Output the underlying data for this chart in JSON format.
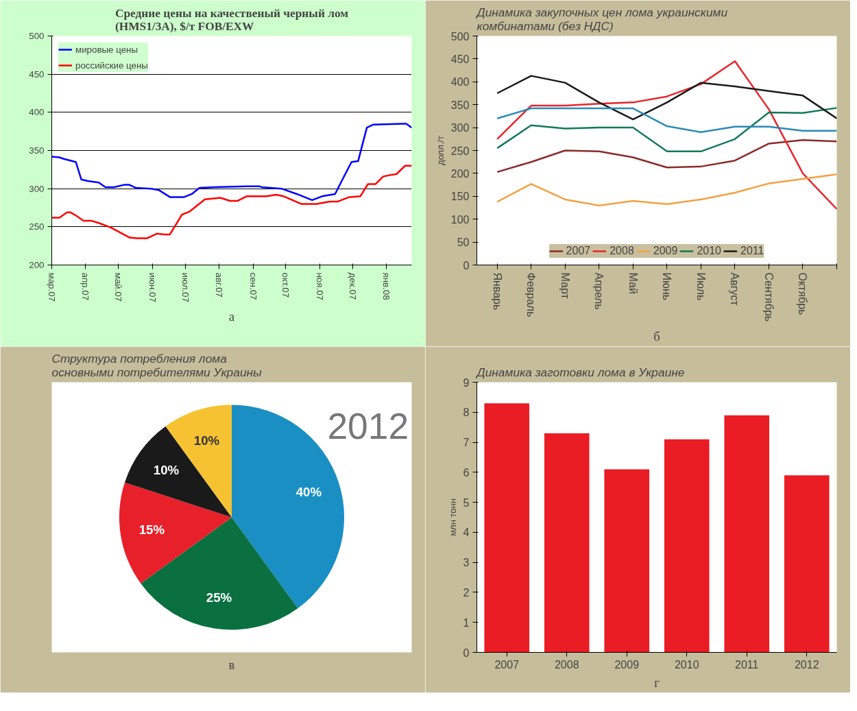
{
  "chart_data": [
    {
      "type": "line",
      "title": "Средние цены на качественый черный лом\n(HMS1/3A), $/т FOB/EXW",
      "xlim": [
        "2007-03-01",
        "2008-01-24"
      ],
      "ylim": [
        200,
        500
      ],
      "yticks": [
        200,
        250,
        300,
        350,
        400,
        450,
        500
      ],
      "xticks": [
        {
          "value": "2007-03-01",
          "label": "мар.07"
        },
        {
          "value": "2007-04-01",
          "label": "апр.07"
        },
        {
          "value": "2007-05-01",
          "label": "май.07"
        },
        {
          "value": "2007-06-01",
          "label": "июн.07"
        },
        {
          "value": "2007-07-01",
          "label": "июл.07"
        },
        {
          "value": "2007-08-01",
          "label": "авг.07"
        },
        {
          "value": "2007-09-01",
          "label": "сен.07"
        },
        {
          "value": "2007-10-01",
          "label": "окт.07"
        },
        {
          "value": "2007-11-01",
          "label": "ноя.07"
        },
        {
          "value": "2007-12-01",
          "label": "дек.07"
        },
        {
          "value": "2008-01-01",
          "label": "янв.08"
        }
      ],
      "grid": "y",
      "legend": "top left",
      "annotations": [
        "а"
      ],
      "series": [
        {
          "name": "мировые цены",
          "color": "#0000ff",
          "x": [
            "2007-03-01",
            "2007-03-08",
            "2007-03-12",
            "2007-03-23",
            "2007-03-28",
            "2007-04-03",
            "2007-04-13",
            "2007-04-19",
            "2007-04-27",
            "2007-05-06",
            "2007-05-11",
            "2007-05-17",
            "2007-05-31",
            "2007-06-07",
            "2007-06-17",
            "2007-06-30",
            "2007-07-07",
            "2007-07-14",
            "2007-07-27",
            "2007-08-26",
            "2007-09-07",
            "2007-09-09",
            "2007-09-27",
            "2007-10-11",
            "2007-10-25",
            "2007-11-03",
            "2007-11-15",
            "2007-11-21",
            "2007-11-30",
            "2007-12-06",
            "2007-12-14",
            "2007-12-20",
            "2008-01-16",
            "2008-01-19",
            "2008-01-24"
          ],
          "values": [
            342,
            341,
            339,
            335,
            312,
            310,
            308,
            302,
            302,
            305,
            305,
            301,
            300,
            298,
            289,
            289,
            293,
            301,
            302,
            303,
            303,
            302,
            300,
            293,
            285,
            290,
            293,
            310,
            335,
            336,
            380,
            384,
            385,
            385,
            380
          ]
        },
        {
          "name": "российские цены",
          "color": "#ff0000",
          "x": [
            "2007-03-01",
            "2007-03-08",
            "2007-03-15",
            "2007-03-18",
            "2007-03-24",
            "2007-03-30",
            "2007-04-06",
            "2007-04-13",
            "2007-04-24",
            "2007-05-11",
            "2007-05-18",
            "2007-05-27",
            "2007-06-05",
            "2007-06-12",
            "2007-06-17",
            "2007-06-28",
            "2007-07-05",
            "2007-07-19",
            "2007-08-02",
            "2007-08-11",
            "2007-08-18",
            "2007-08-26",
            "2007-09-13",
            "2007-09-22",
            "2007-09-29",
            "2007-10-15",
            "2007-10-29",
            "2007-11-10",
            "2007-11-17",
            "2007-11-28",
            "2007-12-08",
            "2007-12-15",
            "2007-12-22",
            "2007-12-29",
            "2008-01-05",
            "2008-01-10",
            "2008-01-18",
            "2008-01-24"
          ],
          "values": [
            262,
            262,
            269,
            269,
            264,
            258,
            258,
            255,
            249,
            236,
            235,
            235,
            241,
            240,
            240,
            266,
            270,
            286,
            288,
            284,
            284,
            290,
            290,
            292,
            290,
            280,
            280,
            283,
            283,
            289,
            290,
            306,
            306,
            316,
            318,
            319,
            330,
            330
          ]
        }
      ]
    },
    {
      "type": "line",
      "title": "Динамика закупочных цен лома украинскими\nкомбинатами (без НДС)",
      "ylabel": "долл./т",
      "categories": [
        "Январь",
        "Февраль",
        "Март",
        "Апрель",
        "Май",
        "Июнь",
        "Июль",
        "Август",
        "Сентябрь",
        "Октябрь",
        null
      ],
      "ylim": [
        0,
        500
      ],
      "yticks": [
        0,
        50,
        100,
        150,
        200,
        250,
        300,
        350,
        400,
        450,
        500
      ],
      "grid": "y",
      "legend": "bottom",
      "annotations": [
        "б"
      ],
      "series": [
        {
          "name": "2007",
          "color": "#8b2a2a",
          "values": [
            203,
            225,
            250,
            248,
            235,
            213,
            215,
            228,
            265,
            273,
            270
          ]
        },
        {
          "name": "2008",
          "color": "#e8242c",
          "values": [
            275,
            348,
            348,
            352,
            355,
            368,
            395,
            445,
            340,
            200,
            122
          ]
        },
        {
          "name": "2009",
          "color": "#f5a040",
          "values": [
            138,
            177,
            143,
            130,
            140,
            133,
            143,
            158,
            178,
            188,
            198
          ]
        },
        {
          "name": "2010",
          "color": "#117a5a",
          "values": [
            255,
            305,
            298,
            300,
            300,
            248,
            248,
            275,
            333,
            332,
            343
          ]
        },
        {
          "name": "2011",
          "color": "#1a1a1a",
          "values": [
            375,
            413,
            398,
            355,
            318,
            355,
            398,
            390,
            380,
            370,
            320
          ]
        },
        {
          "color": "#2a8ab8",
          "values": [
            320,
            342,
            342,
            342,
            342,
            303,
            290,
            302,
            302,
            293,
            293
          ]
        }
      ]
    },
    {
      "type": "pie",
      "title": "Структура потребления лома\nосновными потребителями Украины",
      "categories": [
        null,
        null,
        null,
        null,
        null
      ],
      "values": [
        40,
        25,
        15,
        10,
        10
      ],
      "value_labels": [
        "40%",
        "25%",
        "15%",
        "10%",
        "10%"
      ],
      "colors": [
        "#1a8fc4",
        "#0a7040",
        "#e8202a",
        "#1a1a1a",
        "#f7c232"
      ],
      "annotations": [
        "2012",
        "в"
      ]
    },
    {
      "type": "bar",
      "title": "Динамика заготовки лома в Украине",
      "ylabel": "млн тонн",
      "categories": [
        "2007",
        "2008",
        "2009",
        "2010",
        "2011",
        "2012"
      ],
      "values": [
        8.3,
        7.3,
        6.1,
        7.1,
        7.9,
        5.9
      ],
      "color": "#ea1c24",
      "ylim": [
        0,
        9
      ],
      "yticks": [
        0,
        1,
        2,
        3,
        4,
        5,
        6,
        7,
        8,
        9
      ],
      "grid": "y",
      "annotations": [
        "г"
      ]
    }
  ]
}
